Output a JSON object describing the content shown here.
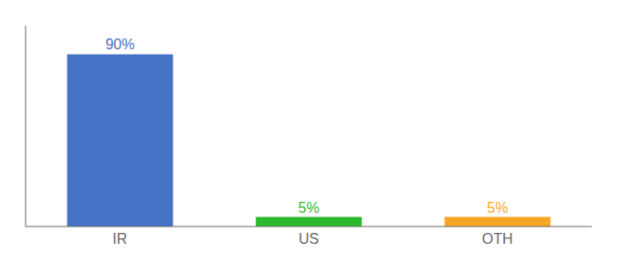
{
  "chart_data": {
    "type": "bar",
    "categories": [
      "IR",
      "US",
      "OTH"
    ],
    "values": [
      90,
      5,
      5
    ],
    "value_labels": [
      "90%",
      "5%",
      "5%"
    ],
    "colors": [
      "#4472c4",
      "#2db92d",
      "#f5a623"
    ],
    "ylim": [
      0,
      105
    ],
    "data_labels": true,
    "tick_labels": "x",
    "grid": false
  }
}
